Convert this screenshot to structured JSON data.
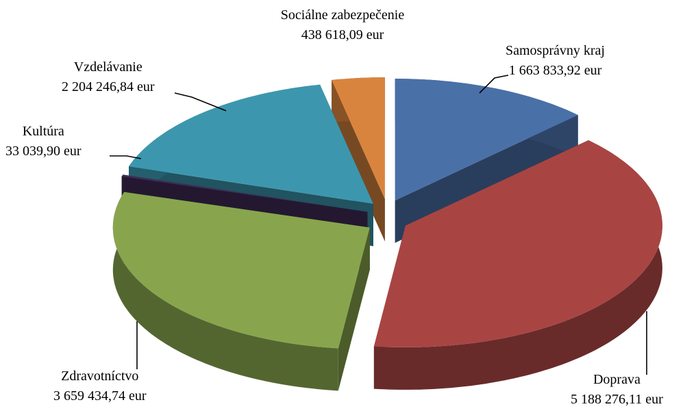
{
  "chart_data": {
    "type": "pie",
    "categories": [
      "Samosprávny kraj",
      "Doprava",
      "Zdravotníctvo",
      "Kultúra",
      "Vzdelávanie",
      "Sociálne zabezpečenie"
    ],
    "values": [
      1663833.92,
      5188276.11,
      3659434.74,
      33039.9,
      2204246.84,
      438618.09
    ],
    "value_labels": [
      "1 663 833,92 eur",
      "5 188 276,11 eur",
      "3 659 434,74 eur",
      "33 039,90 eur",
      "2 204 246,84 eur",
      "438 618,09 eur"
    ],
    "colors": [
      "#4a70a8",
      "#a84543",
      "#88a54d",
      "#3f2c58",
      "#3c97ae",
      "#d9843e"
    ]
  }
}
